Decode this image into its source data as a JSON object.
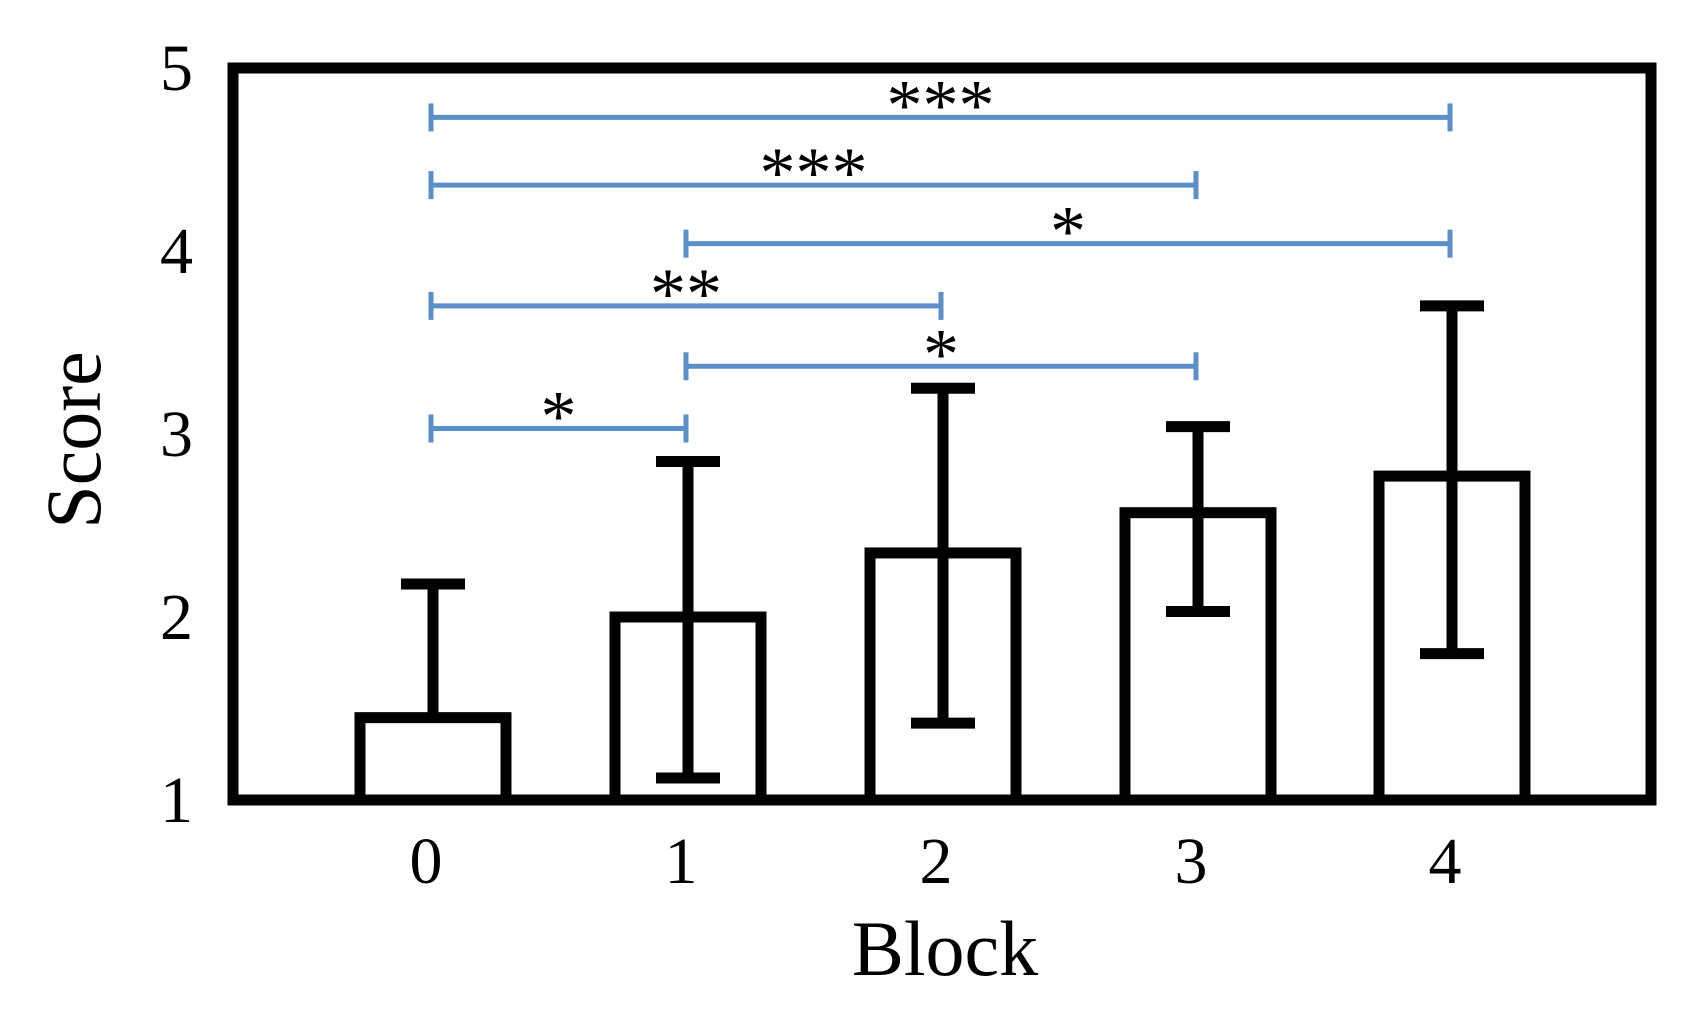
{
  "chart_data": {
    "type": "bar",
    "title": "",
    "xlabel": "Block",
    "ylabel": "Score",
    "categories": [
      "0",
      "1",
      "2",
      "3",
      "4"
    ],
    "values": [
      1.45,
      2.0,
      2.35,
      2.57,
      2.77
    ],
    "error_high": [
      2.18,
      2.85,
      3.25,
      3.04,
      3.7
    ],
    "error_low": [
      1.45,
      1.12,
      1.42,
      2.03,
      1.8
    ],
    "ylim": [
      1,
      5
    ],
    "yticks": [
      "1",
      "2",
      "3",
      "4",
      "5"
    ],
    "grid": false,
    "legend": "none",
    "bar_color": "#000000",
    "significance_color": "#5b8fc7",
    "significance": [
      {
        "from": 0,
        "to": 4,
        "y": 4.73,
        "label": "***"
      },
      {
        "from": 0,
        "to": 3,
        "y": 4.36,
        "label": "***"
      },
      {
        "from": 1,
        "to": 4,
        "y": 4.04,
        "label": "*"
      },
      {
        "from": 0,
        "to": 2,
        "y": 3.7,
        "label": "**"
      },
      {
        "from": 1,
        "to": 3,
        "y": 3.37,
        "label": "*"
      },
      {
        "from": 0,
        "to": 1,
        "y": 3.03,
        "label": "*"
      }
    ]
  }
}
